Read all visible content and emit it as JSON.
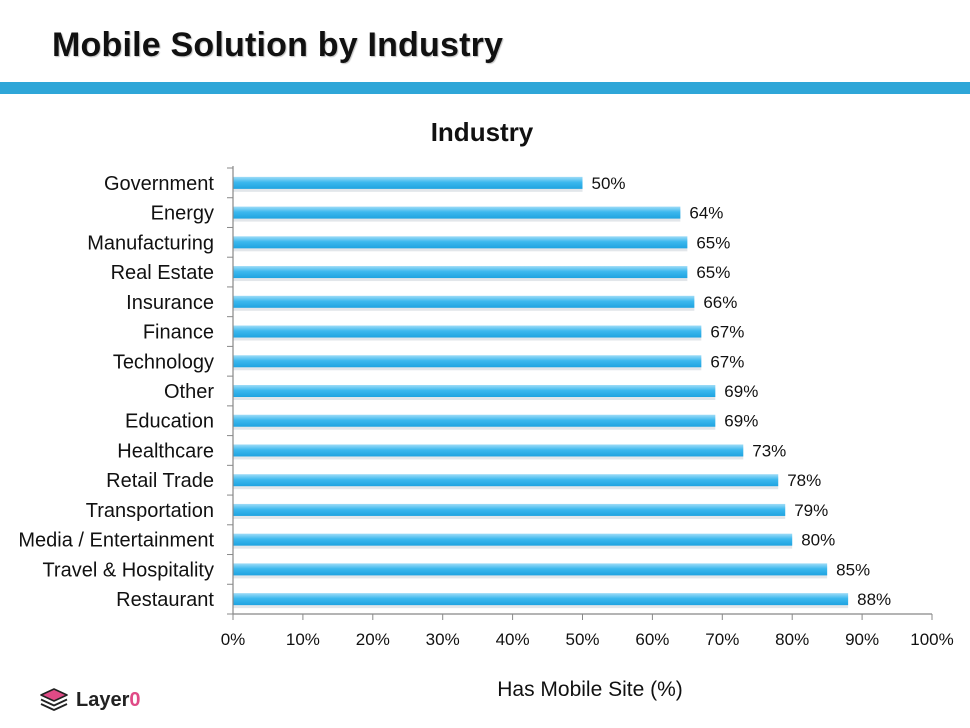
{
  "page": {
    "title": "Mobile Solution by Industry",
    "brand": {
      "name": "Layer",
      "accent": "0",
      "icon": "layers-icon"
    },
    "colors": {
      "rule": "#2ea6d8",
      "bar": "#3cb8ee",
      "bar_highlight": "#9fdcf7",
      "brand_accent": "#e04a86"
    }
  },
  "chart_data": {
    "type": "bar",
    "orientation": "horizontal",
    "title": "Industry",
    "xlabel": "Has Mobile Site (%)",
    "ylabel": "",
    "xlim": [
      0,
      100
    ],
    "xticks": [
      "0%",
      "10%",
      "20%",
      "30%",
      "40%",
      "50%",
      "60%",
      "70%",
      "80%",
      "90%",
      "100%"
    ],
    "grid": false,
    "categories": [
      "Government",
      "Energy",
      "Manufacturing",
      "Real Estate",
      "Insurance",
      "Finance",
      "Technology",
      "Other",
      "Education",
      "Healthcare",
      "Retail Trade",
      "Transportation",
      "Media / Entertainment",
      "Travel & Hospitality",
      "Restaurant"
    ],
    "values": [
      50,
      64,
      65,
      65,
      66,
      67,
      67,
      69,
      69,
      73,
      78,
      79,
      80,
      85,
      88
    ],
    "value_labels": [
      "50%",
      "64%",
      "65%",
      "65%",
      "66%",
      "67%",
      "67%",
      "69%",
      "69%",
      "73%",
      "78%",
      "79%",
      "80%",
      "85%",
      "88%"
    ]
  }
}
